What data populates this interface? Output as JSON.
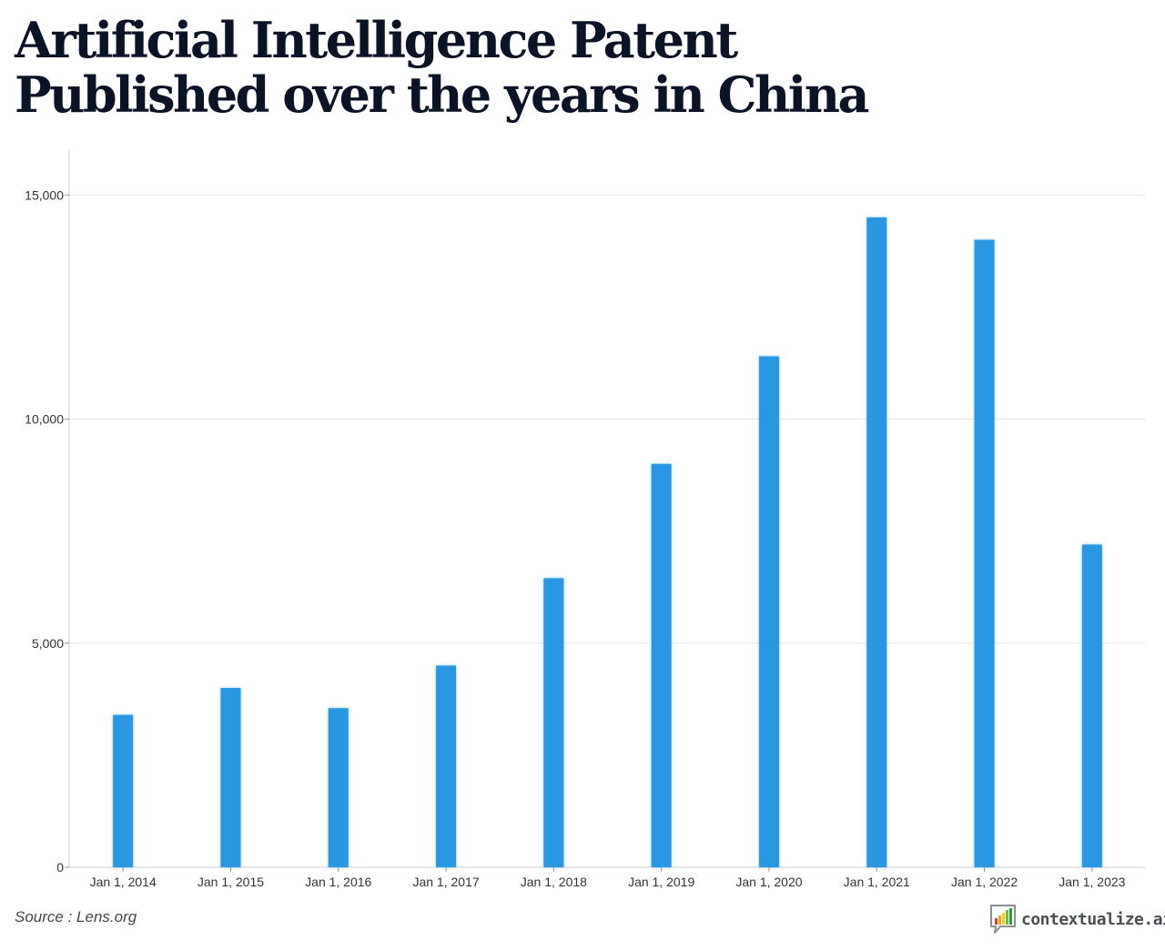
{
  "header": {
    "title_line1": "Artificial Intelligence Patent",
    "title_line2": "Published over the years in China"
  },
  "footer": {
    "source": "Source : Lens.org",
    "brand": "contextualize.ai"
  },
  "colors": {
    "bar": "#2b97e3",
    "grid": "#e6e6e6",
    "axis": "#cccccc"
  },
  "chart_data": {
    "type": "bar",
    "title": "Artificial Intelligence Patent Published over the years in China",
    "xlabel": "",
    "ylabel": "",
    "categories": [
      "Jan 1, 2014",
      "Jan 1, 2015",
      "Jan 1, 2016",
      "Jan 1, 2017",
      "Jan 1, 2018",
      "Jan 1, 2019",
      "Jan 1, 2020",
      "Jan 1, 2021",
      "Jan 1, 2022",
      "Jan 1, 2023"
    ],
    "values": [
      3400,
      4000,
      3550,
      4500,
      6450,
      9000,
      11400,
      14500,
      14000,
      7200
    ],
    "ylim": [
      0,
      16000
    ],
    "yticks": [
      0,
      5000,
      10000,
      15000
    ],
    "ytick_labels": [
      "0",
      "5,000",
      "10,000",
      "15,000"
    ],
    "grid": true
  }
}
